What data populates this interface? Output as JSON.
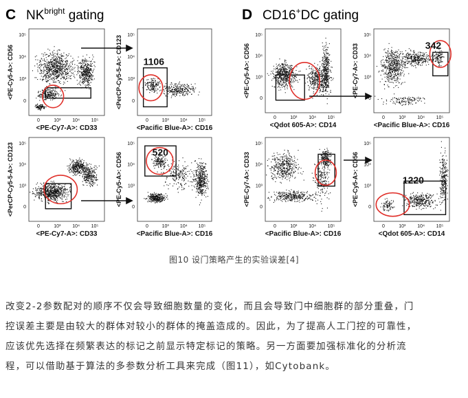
{
  "figure": {
    "panel_c": {
      "letter": "C",
      "title": "NK",
      "title_sup": "bright",
      "title_rest": " gating"
    },
    "panel_d": {
      "letter": "D",
      "title": "CD16",
      "title_sup": "+",
      "title_rest": "DC gating"
    },
    "plots": {
      "c1": {
        "ylabel": "<PE-Cy5-A>: CD56",
        "xlabel": "<PE-Cy7-A>: CD33",
        "yticks": [
          "10⁵",
          "10⁴",
          "10³",
          "0"
        ],
        "xticks": [
          "0",
          "10³",
          "10⁴",
          "10⁵"
        ]
      },
      "c2": {
        "ylabel": "<PerCP-Cy5-5-A>: CD123",
        "xlabel": "<Pacific Blue-A>: CD16",
        "count": "1106",
        "yticks": [
          "10⁵",
          "10⁴",
          "10³",
          "0"
        ],
        "xticks": [
          "0",
          "10³",
          "10⁴",
          "10⁵"
        ]
      },
      "c3": {
        "ylabel": "<PerCP-Cy5-5-A>: CD123",
        "xlabel": "<PE-Cy7-A>: CD33",
        "yticks": [
          "10⁵",
          "10⁴",
          "10³",
          "0"
        ],
        "xticks": [
          "0",
          "10³",
          "10⁴",
          "10⁵"
        ]
      },
      "c4": {
        "ylabel": "<PE-Cy5-A>: CD56",
        "xlabel": "<Pacific Blue-A>: CD16",
        "count": "520",
        "yticks": [
          "10⁵",
          "10⁴",
          "10³",
          "0"
        ],
        "xticks": [
          "0",
          "10³",
          "10⁴",
          "10⁵"
        ]
      },
      "d1": {
        "ylabel": "<PE-Cy5-A>: CD56",
        "xlabel": "<Qdot 605-A>: CD14",
        "yticks": [
          "10⁵",
          "10⁴",
          "10³",
          "0"
        ],
        "xticks": [
          "0",
          "10³",
          "10⁴",
          "10⁵"
        ]
      },
      "d2": {
        "ylabel": "<PE-Cy7-A>: CD33",
        "xlabel": "<Pacific Blue-A>: CD16",
        "count": "342",
        "yticks": [
          "10⁵",
          "10⁴",
          "10³",
          "0"
        ],
        "xticks": [
          "0",
          "10³",
          "10⁴",
          "10⁵"
        ]
      },
      "d3": {
        "ylabel": "<PE-Cy7-A>: CD33",
        "xlabel": "<Pacific Blue-A>: CD16",
        "yticks": [
          "10⁵",
          "10⁴",
          "10³",
          "0"
        ],
        "xticks": [
          "0",
          "10³",
          "10⁴",
          "10⁵"
        ]
      },
      "d4": {
        "ylabel": "<PE-Cy5-A>: CD56",
        "xlabel": "<Qdot 605-A>: CD14",
        "count": "1220",
        "yticks": [
          "10⁵",
          "10⁴",
          "10³",
          "0"
        ],
        "xticks": [
          "0",
          "10³",
          "10⁴",
          "10⁵"
        ]
      }
    },
    "colors": {
      "dots": "#111111",
      "gate_circle": "#e0302a",
      "gate_box": "#111111"
    }
  },
  "caption": "图10  设门策略产生的实验误差[4]",
  "paragraph": [
    "改变2-2参数配对的顺序不仅会导致细胞数量的变化，而且会导致门中细胞群的部分重叠，门",
    "控误差主要是由较大的群体对较小的群体的掩盖造成的。因此，为了提高人工门控的可靠性，",
    "应该优先选择在频繁表达的标记之前显示特定标记的策略。另一方面要加强标准化的分析流",
    "程，可以借助基于算法的多参数分析工具来完成（图11），如Cytobank。"
  ]
}
